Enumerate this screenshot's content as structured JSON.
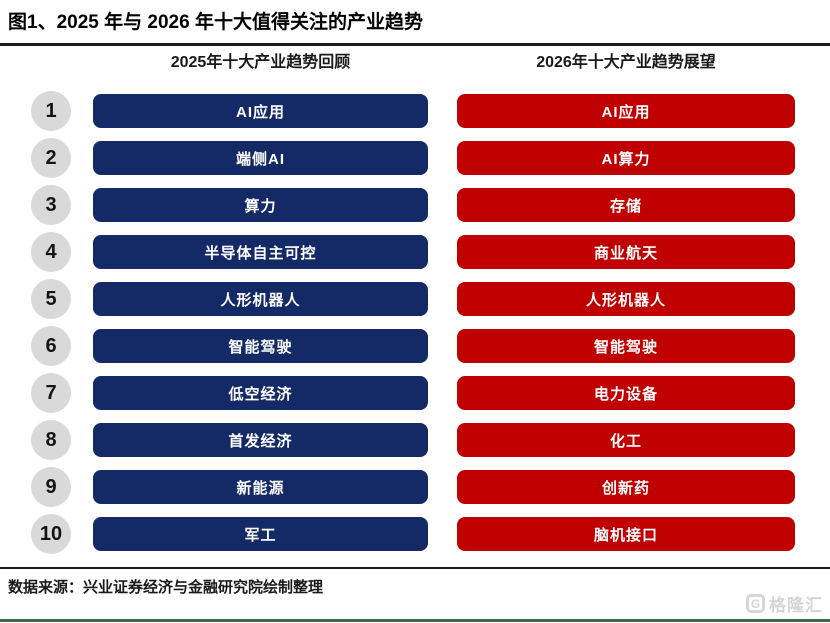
{
  "figure": {
    "title": "图1、2025 年与 2026 年十大值得关注的产业趋势",
    "columns": {
      "left_header": "2025年十大产业趋势回顾",
      "right_header": "2026年十大产业趋势展望"
    },
    "rows": [
      {
        "rank": "1",
        "left": "AI应用",
        "right": "AI应用"
      },
      {
        "rank": "2",
        "left": "端侧AI",
        "right": "AI算力"
      },
      {
        "rank": "3",
        "left": "算力",
        "right": "存储"
      },
      {
        "rank": "4",
        "left": "半导体自主可控",
        "right": "商业航天"
      },
      {
        "rank": "5",
        "left": "人形机器人",
        "right": "人形机器人"
      },
      {
        "rank": "6",
        "left": "智能驾驶",
        "right": "智能驾驶"
      },
      {
        "rank": "7",
        "left": "低空经济",
        "right": "电力设备"
      },
      {
        "rank": "8",
        "left": "首发经济",
        "right": "化工"
      },
      {
        "rank": "9",
        "left": "新能源",
        "right": "创新药"
      },
      {
        "rank": "10",
        "left": "军工",
        "right": "脑机接口"
      }
    ],
    "source": "数据来源：兴业证券经济与金融研究院绘制整理",
    "watermark": {
      "icon_letter": "G",
      "text": "格隆汇"
    },
    "colors": {
      "left_bar": "#142a66",
      "right_bar": "#c00000",
      "rank_circle": "#d9d9d9",
      "bottom_line": "#3f6a50",
      "bar_text": "#ffffff"
    }
  }
}
